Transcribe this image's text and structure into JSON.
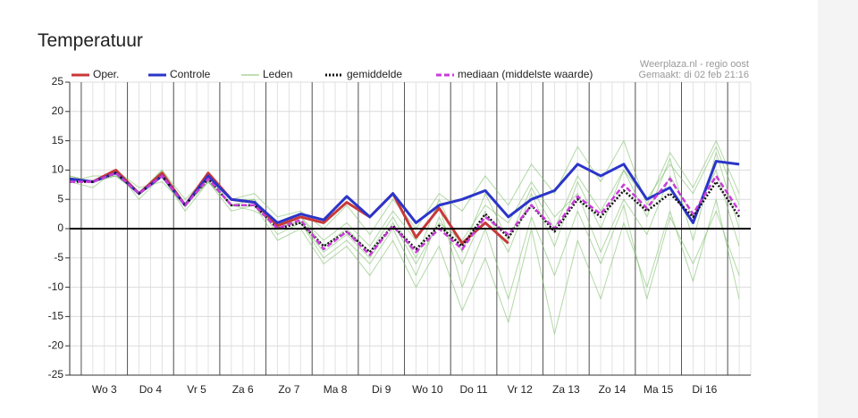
{
  "chart_data": {
    "type": "line",
    "title": "Temperatuur",
    "source": "Weerplaza.nl - regio oost",
    "created": "Gemaakt: di 02 feb 21:16",
    "x": [
      2.75,
      3.25,
      3.75,
      4.25,
      4.75,
      5.25,
      5.75,
      6.25,
      6.75,
      7.25,
      7.75,
      8.25,
      8.75,
      9.25,
      9.75,
      10.25,
      10.75,
      11.25,
      11.75,
      12.25,
      12.75,
      13.25,
      13.75,
      14.25,
      14.75,
      15.25,
      15.75,
      16.25,
      16.75,
      17.25
    ],
    "xlim": [
      2.75,
      17.5
    ],
    "xticks": [
      {
        "value": 3.5,
        "label": "Wo 3"
      },
      {
        "value": 4.5,
        "label": "Do 4"
      },
      {
        "value": 5.5,
        "label": "Vr 5"
      },
      {
        "value": 6.5,
        "label": "Za 6"
      },
      {
        "value": 7.5,
        "label": "Zo 7"
      },
      {
        "value": 8.5,
        "label": "Ma 8"
      },
      {
        "value": 9.5,
        "label": "Di 9"
      },
      {
        "value": 10.5,
        "label": "Wo 10"
      },
      {
        "value": 11.5,
        "label": "Do 11"
      },
      {
        "value": 12.5,
        "label": "Vr 12"
      },
      {
        "value": 13.5,
        "label": "Za 13"
      },
      {
        "value": 14.5,
        "label": "Zo 14"
      },
      {
        "value": 15.5,
        "label": "Ma 15"
      },
      {
        "value": 16.5,
        "label": "Di 16"
      }
    ],
    "day_lines": [
      3,
      4,
      5,
      6,
      7,
      8,
      9,
      10,
      11,
      12,
      13,
      14,
      15,
      16,
      17
    ],
    "ylim": [
      -25,
      25
    ],
    "yticks": [
      25,
      20,
      15,
      10,
      5,
      0,
      -5,
      -10,
      -15,
      -20,
      -25
    ],
    "grid": true,
    "members": {
      "name": "Leden",
      "color": "#7fc06a",
      "values": [
        [
          8,
          8,
          9,
          6,
          9,
          4,
          9,
          4,
          5,
          -1,
          1,
          -5,
          -2,
          -6,
          0,
          -8,
          2,
          -6,
          3,
          -4,
          6,
          -3,
          8,
          0,
          10,
          2,
          12,
          -2,
          13,
          0
        ],
        [
          8,
          7,
          10,
          5,
          9,
          3,
          8,
          4,
          3,
          1,
          2,
          -2,
          1,
          -3,
          3,
          -2,
          4,
          -10,
          0,
          -12,
          2,
          -8,
          3,
          -6,
          4,
          -12,
          2,
          -6,
          3,
          -8
        ],
        [
          9,
          8,
          9,
          6,
          10,
          5,
          9,
          5,
          6,
          2,
          3,
          0,
          4,
          -1,
          5,
          0,
          6,
          3,
          9,
          4,
          11,
          6,
          14,
          8,
          15,
          4,
          13,
          7,
          15,
          6
        ],
        [
          8,
          8,
          10,
          7,
          8,
          4,
          8,
          3,
          4,
          -2,
          0,
          -6,
          -3,
          -8,
          -2,
          -10,
          -3,
          -14,
          -5,
          -16,
          0,
          -18,
          -2,
          -12,
          1,
          -10,
          3,
          -9,
          5,
          -12
        ],
        [
          8,
          9,
          9,
          6,
          9,
          4,
          9,
          5,
          5,
          0,
          2,
          -3,
          0,
          -4,
          2,
          -5,
          5,
          -4,
          6,
          -2,
          7,
          0,
          9,
          3,
          10,
          5,
          11,
          6,
          14,
          4
        ],
        [
          9,
          8,
          10,
          6,
          10,
          4,
          8,
          4,
          4,
          1,
          1,
          -4,
          -1,
          -5,
          1,
          -6,
          1,
          -2,
          4,
          1,
          8,
          2,
          6,
          -4,
          5,
          -1,
          9,
          2,
          10,
          -3
        ]
      ]
    },
    "series": [
      {
        "name": "Oper.",
        "color": "#c8383a",
        "style": "solid",
        "values": [
          8.5,
          8,
          10,
          6,
          9.5,
          4,
          9.5,
          5,
          4.5,
          0.5,
          2,
          1,
          4.5,
          2,
          6,
          -1.5,
          3.5,
          -2.5,
          1,
          -2.5,
          null,
          null,
          null,
          null,
          null,
          null,
          null,
          null,
          null,
          null
        ]
      },
      {
        "name": "Controle",
        "color": "#2b35c8",
        "style": "solid",
        "values": [
          8.5,
          8,
          9.5,
          6,
          9,
          4,
          9,
          5,
          4.5,
          1,
          2.5,
          1.5,
          5.5,
          2,
          6,
          1,
          4,
          5,
          6.5,
          2,
          5,
          6.5,
          11,
          9,
          11,
          5,
          7,
          1,
          11.5,
          11
        ]
      },
      {
        "name": "gemiddelde",
        "color": "#111111",
        "style": "dotted",
        "values": [
          8,
          8,
          9.5,
          6,
          9,
          4,
          8.5,
          4,
          4,
          0,
          1,
          -3,
          -0.5,
          -4,
          0.5,
          -3.5,
          0.5,
          -3,
          2.5,
          -1.5,
          4,
          -0.5,
          5,
          2,
          6.5,
          3,
          6,
          2,
          8,
          2
        ]
      },
      {
        "name": "mediaan (middelste waarde)",
        "color": "#c83cd8",
        "style": "dashed",
        "values": [
          8,
          8,
          9.5,
          6,
          9,
          4,
          8.5,
          4,
          4,
          0,
          1.5,
          -3.5,
          -0.5,
          -4.5,
          0.5,
          -4,
          0,
          -3.5,
          2,
          -1,
          4,
          0,
          5.5,
          2.5,
          7.5,
          3.5,
          8.5,
          2.5,
          9,
          3
        ]
      }
    ]
  }
}
